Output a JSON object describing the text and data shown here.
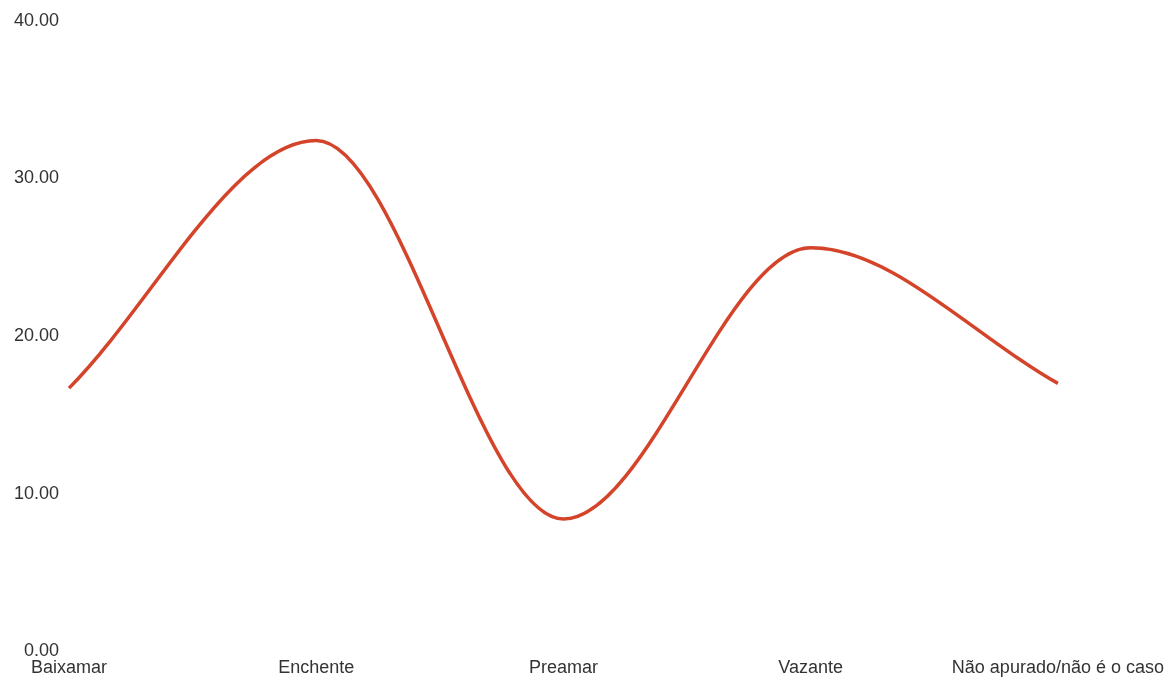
{
  "chart_data": {
    "type": "line",
    "categories": [
      "Baixamar",
      "Enchente",
      "Preamar",
      "Vazante",
      "Não apurado/não é o caso"
    ],
    "series": [
      {
        "color": "#d4442a",
        "values": [
          16.7,
          32.4,
          8.4,
          25.6,
          17.0
        ]
      }
    ],
    "ylim": [
      0,
      40
    ],
    "yticks": [
      {
        "value": 0,
        "label": "0.00"
      },
      {
        "value": 10,
        "label": "10.00"
      },
      {
        "value": 20,
        "label": "20.00"
      },
      {
        "value": 30,
        "label": "30.00"
      },
      {
        "value": 40,
        "label": "40.00"
      }
    ],
    "grid": false,
    "legend": false,
    "marker": "none",
    "line_style": "solid"
  }
}
